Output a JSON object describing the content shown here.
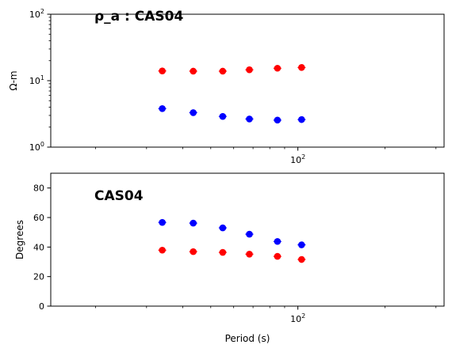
{
  "chart_data": [
    {
      "type": "scatter",
      "title": "ρ_a : CAS04",
      "xlabel": "",
      "ylabel": "Ω-m",
      "xscale": "log",
      "yscale": "log",
      "xlim": [
        14,
        320
      ],
      "ylim": [
        1,
        100
      ],
      "yticks": [
        {
          "value": 1,
          "base": "10",
          "exp": "0"
        },
        {
          "value": 10,
          "base": "10",
          "exp": "1"
        },
        {
          "value": 100,
          "base": "10",
          "exp": "2"
        }
      ],
      "xticks": [
        {
          "value": 100,
          "base": "10",
          "exp": "2"
        }
      ],
      "series": [
        {
          "color": "#ff0000",
          "x": [
            34,
            43.5,
            55,
            68,
            85,
            103
          ],
          "y": [
            14.0,
            13.9,
            13.9,
            14.6,
            15.4,
            15.8
          ]
        },
        {
          "color": "#0000ff",
          "x": [
            34,
            43.5,
            55,
            68,
            85,
            103
          ],
          "y": [
            3.8,
            3.3,
            2.9,
            2.65,
            2.55,
            2.6
          ]
        }
      ]
    },
    {
      "type": "scatter",
      "title": "CAS04",
      "xlabel": "Period (s)",
      "ylabel": "Degrees",
      "xscale": "log",
      "yscale": "linear",
      "xlim": [
        14,
        320
      ],
      "ylim": [
        0,
        90
      ],
      "yticks": [
        {
          "value": 0,
          "label": "0"
        },
        {
          "value": 20,
          "label": "20"
        },
        {
          "value": 40,
          "label": "40"
        },
        {
          "value": 60,
          "label": "60"
        },
        {
          "value": 80,
          "label": "80"
        }
      ],
      "xticks": [
        {
          "value": 100,
          "base": "10",
          "exp": "2"
        }
      ],
      "series": [
        {
          "color": "#0000ff",
          "x": [
            34,
            43.5,
            55,
            68,
            85,
            103
          ],
          "y": [
            56.7,
            56.2,
            53.0,
            48.7,
            43.8,
            41.5
          ]
        },
        {
          "color": "#ff0000",
          "x": [
            34,
            43.5,
            55,
            68,
            85,
            103
          ],
          "y": [
            37.9,
            36.9,
            36.4,
            35.2,
            33.7,
            31.6
          ]
        }
      ]
    }
  ]
}
